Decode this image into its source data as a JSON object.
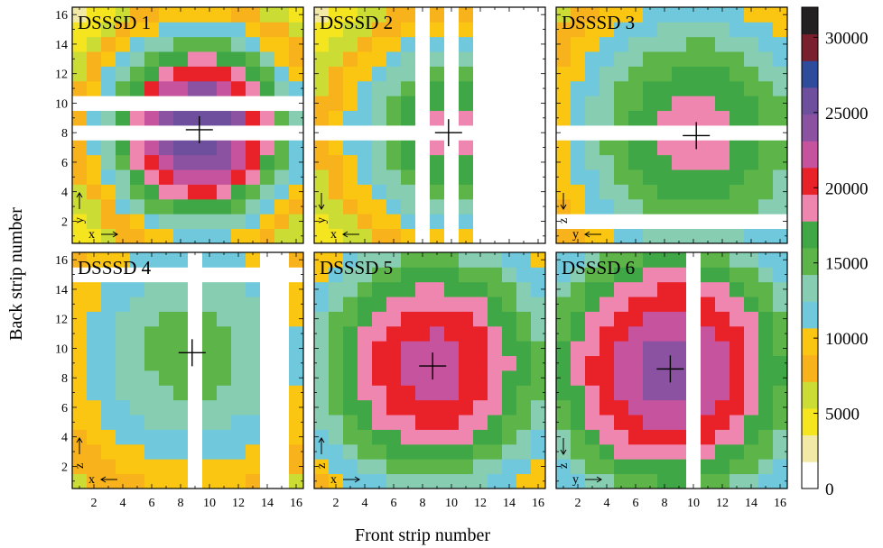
{
  "figure": {
    "ylabel": "Back strip number",
    "xlabel": "Front strip number"
  },
  "colorbar": {
    "min": 0,
    "max": 32000,
    "step": 2000,
    "tick_labels": [
      "0",
      "5000",
      "10000",
      "15000",
      "20000",
      "25000",
      "30000"
    ],
    "tick_values": [
      0,
      5000,
      10000,
      15000,
      20000,
      25000,
      30000
    ],
    "bin_colors": [
      "#ffffff",
      "#f3e9a6",
      "#f5e51f",
      "#cbdc35",
      "#f8b21b",
      "#fbc612",
      "#6fc8dc",
      "#86cdb2",
      "#5db549",
      "#3fa746",
      "#ef86b0",
      "#e92128",
      "#c6539d",
      "#8a52a0",
      "#6e4f9e",
      "#2f4c9c",
      "#7a1f2d",
      "#232021"
    ]
  },
  "chart_data": {
    "type": "heatmap",
    "x_tick_labels": [
      "2",
      "4",
      "6",
      "8",
      "10",
      "12",
      "14",
      "16"
    ],
    "y_tick_labels": [
      "2",
      "4",
      "6",
      "8",
      "10",
      "12",
      "14",
      "16"
    ],
    "xlim": [
      1,
      16
    ],
    "ylim": [
      1,
      16
    ],
    "panels": [
      {
        "title": "DSSSD 1",
        "center": [
          9.3,
          8.2
        ],
        "peak": 30000,
        "spread": 5.5,
        "dead_rows": [
          8,
          10
        ],
        "dead_cols": [],
        "axis_h": "x",
        "axis_h_dir": "right",
        "axis_v": "y",
        "axis_v_dir": "up"
      },
      {
        "title": "DSSSD 2",
        "center": [
          9.8,
          8.0
        ],
        "peak": 21000,
        "spread": 6.5,
        "dead_rows": [
          8
        ],
        "dead_cols": [
          8,
          10,
          12,
          13,
          14,
          15,
          16
        ],
        "axis_h": "x",
        "axis_h_dir": "left",
        "axis_v": "y",
        "axis_v_dir": "down"
      },
      {
        "title": "DSSSD 3",
        "center": [
          10.2,
          7.8
        ],
        "peak": 21000,
        "spread": 8.5,
        "dead_rows": [
          2,
          8
        ],
        "dead_cols": [],
        "axis_h": "y",
        "axis_h_dir": "left",
        "axis_v": "z",
        "axis_v_dir": "down"
      },
      {
        "title": "DSSSD 4",
        "center": [
          8.8,
          9.7
        ],
        "peak": 17000,
        "spread": 9.0,
        "dead_rows": [
          15
        ],
        "dead_cols": [
          9,
          14,
          15
        ],
        "axis_h": "x",
        "axis_h_dir": "left",
        "axis_v": "z",
        "axis_v_dir": "up"
      },
      {
        "title": "DSSSD 5",
        "center": [
          8.7,
          8.8
        ],
        "peak": 25000,
        "spread": 8.0,
        "dead_rows": [],
        "dead_cols": [],
        "axis_h": "x",
        "axis_h_dir": "right",
        "axis_v": "z",
        "axis_v_dir": "up"
      },
      {
        "title": "DSSSD 6",
        "center": [
          8.4,
          8.6
        ],
        "peak": 27000,
        "spread": 8.5,
        "dead_rows": [],
        "dead_cols": [
          10
        ],
        "axis_h": "y",
        "axis_h_dir": "right",
        "axis_v": "z",
        "axis_v_dir": "down"
      }
    ]
  }
}
